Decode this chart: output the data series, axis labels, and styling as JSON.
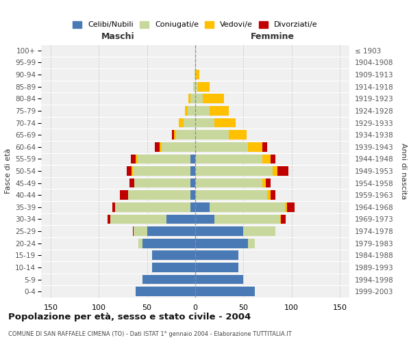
{
  "age_groups": [
    "0-4",
    "5-9",
    "10-14",
    "15-19",
    "20-24",
    "25-29",
    "30-34",
    "35-39",
    "40-44",
    "45-49",
    "50-54",
    "55-59",
    "60-64",
    "65-69",
    "70-74",
    "75-79",
    "80-84",
    "85-89",
    "90-94",
    "95-99",
    "100+"
  ],
  "birth_years": [
    "1999-2003",
    "1994-1998",
    "1989-1993",
    "1984-1988",
    "1979-1983",
    "1974-1978",
    "1969-1973",
    "1964-1968",
    "1959-1963",
    "1954-1958",
    "1949-1953",
    "1944-1948",
    "1939-1943",
    "1934-1938",
    "1929-1933",
    "1924-1928",
    "1919-1923",
    "1914-1918",
    "1909-1913",
    "1904-1908",
    "≤ 1903"
  ],
  "maschi_celibi": [
    62,
    55,
    45,
    45,
    55,
    50,
    30,
    5,
    5,
    5,
    5,
    5,
    0,
    0,
    0,
    0,
    0,
    0,
    0,
    0,
    0
  ],
  "maschi_coniugati": [
    0,
    0,
    0,
    0,
    4,
    14,
    58,
    78,
    65,
    58,
    60,
    55,
    35,
    20,
    12,
    8,
    5,
    2,
    1,
    0,
    0
  ],
  "maschi_vedovi": [
    0,
    0,
    0,
    0,
    0,
    0,
    0,
    0,
    0,
    0,
    1,
    2,
    2,
    2,
    5,
    3,
    2,
    0,
    0,
    0,
    0
  ],
  "maschi_divorziati": [
    0,
    0,
    0,
    0,
    0,
    1,
    3,
    3,
    8,
    5,
    5,
    5,
    5,
    2,
    0,
    0,
    0,
    0,
    0,
    0,
    0
  ],
  "femmine_nubili": [
    62,
    50,
    45,
    45,
    55,
    50,
    20,
    15,
    0,
    0,
    0,
    0,
    0,
    0,
    0,
    0,
    0,
    0,
    0,
    0,
    0
  ],
  "femmine_coniugate": [
    0,
    0,
    0,
    0,
    7,
    33,
    68,
    78,
    75,
    70,
    80,
    70,
    55,
    35,
    20,
    15,
    8,
    3,
    1,
    0,
    0
  ],
  "femmine_vedove": [
    0,
    0,
    0,
    0,
    0,
    0,
    1,
    2,
    3,
    3,
    5,
    8,
    15,
    18,
    22,
    20,
    22,
    12,
    3,
    1,
    0
  ],
  "femmine_divorziate": [
    0,
    0,
    0,
    0,
    0,
    0,
    5,
    8,
    5,
    5,
    12,
    5,
    5,
    0,
    0,
    0,
    0,
    0,
    0,
    0,
    0
  ],
  "colors": {
    "celibi_nubili": "#4a7ab5",
    "coniugati": "#c8d89c",
    "vedovi": "#ffc000",
    "divorziati": "#c00000"
  },
  "title": "Popolazione per età, sesso e stato civile - 2004",
  "subtitle": "COMUNE DI SAN RAFFAELE CIMENA (TO) - Dati ISTAT 1° gennaio 2004 - Elaborazione TUTTITALIA.IT",
  "ylabel_left": "Fasce di età",
  "ylabel_right": "Anni di nascita",
  "header_maschi": "Maschi",
  "header_femmine": "Femmine",
  "legend_labels": [
    "Celibi/Nubili",
    "Coniugati/e",
    "Vedovi/e",
    "Divorziati/e"
  ],
  "xlim": 160,
  "bg_color": "#ffffff",
  "plot_bg": "#f0f0f0",
  "grid_color": "#cccccc"
}
